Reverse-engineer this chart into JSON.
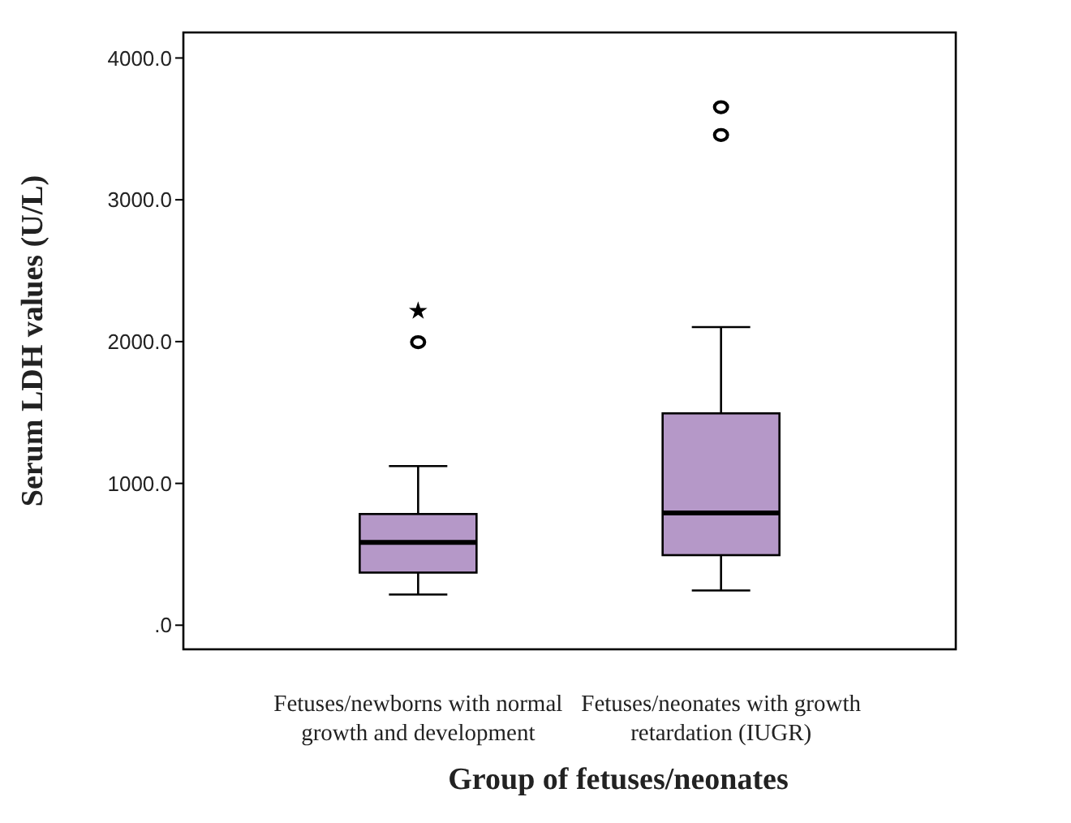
{
  "chart_data": {
    "type": "box",
    "xlabel": "Group of fetuses/neonates",
    "ylabel": "Serum LDH values (U/L)",
    "categories": [
      "Fetuses/newborns with normal growth and development",
      "Fetuses/neonates with growth retardation (IUGR)"
    ],
    "boxes": [
      {
        "low": 216,
        "q1": 371,
        "median": 584,
        "q3": 784,
        "high": 1122,
        "outliers": [
          1996,
          2216
        ]
      },
      {
        "low": 245,
        "q1": 494,
        "median": 792,
        "q3": 1494,
        "high": 2102,
        "outliers": [
          3457,
          3653
        ]
      }
    ],
    "color": "#b598c8",
    "ylim": [
      -170,
      4180
    ],
    "yticks": [
      {
        "value": 0,
        "label": ".0"
      },
      {
        "value": 1000,
        "label": "1000.0"
      },
      {
        "value": 2000,
        "label": "2000.0"
      },
      {
        "value": 3000,
        "label": "3000.0"
      },
      {
        "value": 4000,
        "label": "4000.0"
      }
    ]
  }
}
